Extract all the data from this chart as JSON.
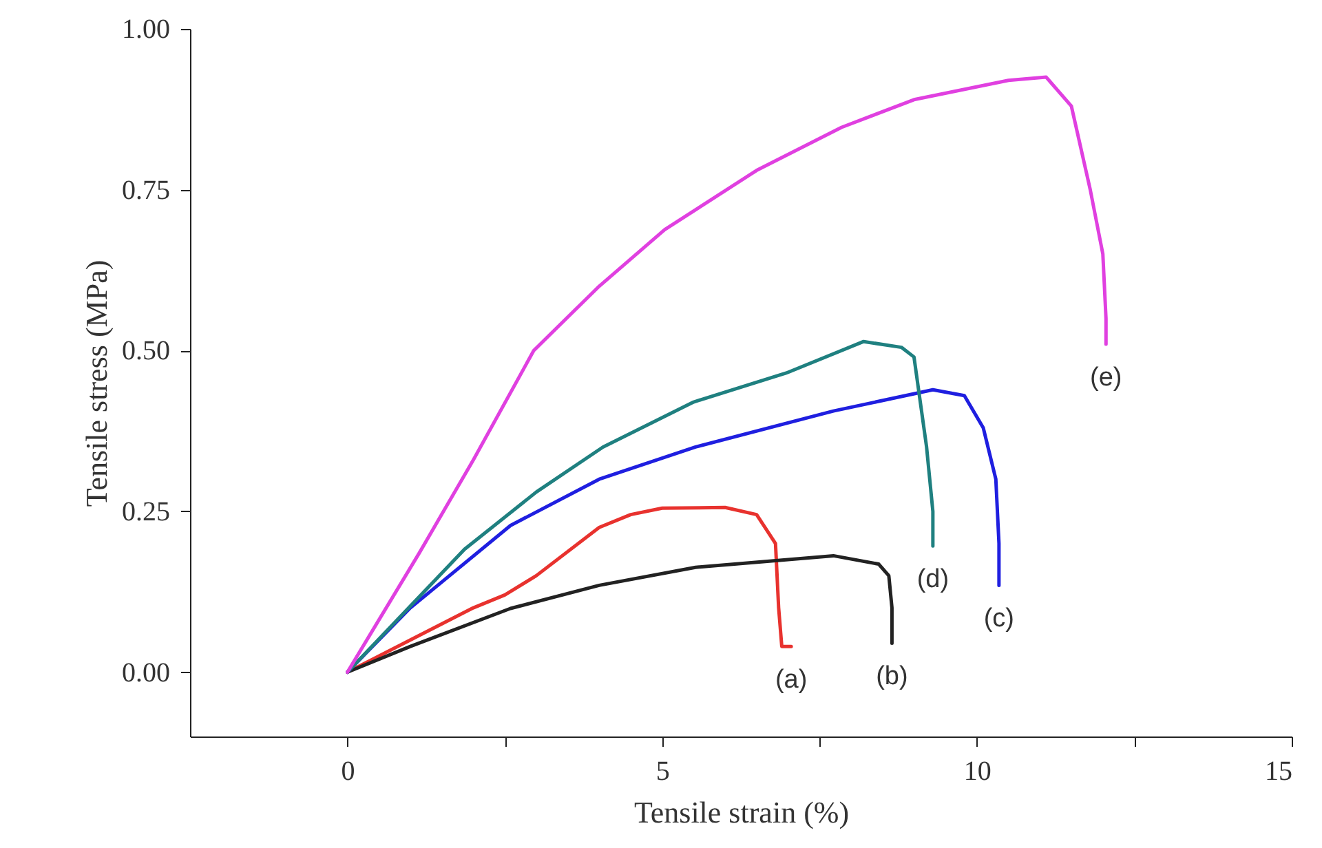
{
  "chart_data": {
    "type": "line",
    "xlabel": "Tensile strain (%)",
    "ylabel": "Tensile stress (MPa)",
    "xlim": [
      -2.5,
      15
    ],
    "ylim": [
      -0.1,
      1.0
    ],
    "xticks": [
      0,
      {
        "value": 2.5,
        "label": null
      },
      5,
      {
        "value": 7.5,
        "label": null
      },
      10,
      {
        "value": 12.5,
        "label": null
      },
      15
    ],
    "yticks": [
      {
        "value": 0,
        "label": "0.00"
      },
      {
        "value": 0.25,
        "label": "0.25"
      },
      {
        "value": 0.5,
        "label": "0.50"
      },
      {
        "value": 0.75,
        "label": "0.75"
      },
      {
        "value": 1.0,
        "label": "1.00"
      }
    ],
    "grid": false,
    "legend": false,
    "marker": "none",
    "line_style": "solid",
    "series": [
      {
        "name": "(a)",
        "color": "#e8322e",
        "x": [
          0,
          1,
          2,
          2.5,
          3,
          4,
          4.5,
          5,
          6,
          6.5,
          6.8,
          6.85,
          6.9,
          7.05
        ],
        "values": [
          0,
          0.05,
          0.1,
          0.12,
          0.15,
          0.225,
          0.245,
          0.255,
          0.256,
          0.245,
          0.2,
          0.1,
          0.04,
          0.04
        ]
      },
      {
        "name": "(b)",
        "color": "#222222",
        "x": [
          0,
          1,
          2.59,
          4,
          5.53,
          7.72,
          8.44,
          8.6,
          8.65,
          8.65
        ],
        "values": [
          0,
          0.04,
          0.099,
          0.135,
          0.163,
          0.181,
          0.168,
          0.15,
          0.1,
          0.045
        ]
      },
      {
        "name": "(c)",
        "color": "#1f1fe0",
        "x": [
          0,
          1,
          2.59,
          4,
          5.53,
          7.72,
          9.3,
          9.8,
          10.1,
          10.3,
          10.35,
          10.35
        ],
        "values": [
          0,
          0.1,
          0.228,
          0.3,
          0.35,
          0.406,
          0.439,
          0.43,
          0.38,
          0.3,
          0.2,
          0.135
        ]
      },
      {
        "name": "(d)",
        "color": "#1f8080",
        "x": [
          0,
          1.86,
          3,
          4.06,
          5.5,
          6.97,
          8.2,
          8.8,
          9.0,
          9.2,
          9.3,
          9.3
        ],
        "values": [
          0,
          0.191,
          0.28,
          0.35,
          0.42,
          0.465,
          0.514,
          0.505,
          0.49,
          0.35,
          0.25,
          0.196
        ]
      },
      {
        "name": "(e)",
        "color": "#e040e0",
        "x": [
          0,
          1.14,
          2,
          2.96,
          4,
          5.04,
          6.5,
          7.85,
          9,
          10.5,
          11.1,
          11.5,
          11.8,
          12.0,
          12.05,
          12.05
        ],
        "values": [
          0,
          0.185,
          0.33,
          0.5,
          0.6,
          0.688,
          0.78,
          0.847,
          0.89,
          0.92,
          0.925,
          0.88,
          0.75,
          0.65,
          0.55,
          0.51
        ]
      }
    ]
  }
}
